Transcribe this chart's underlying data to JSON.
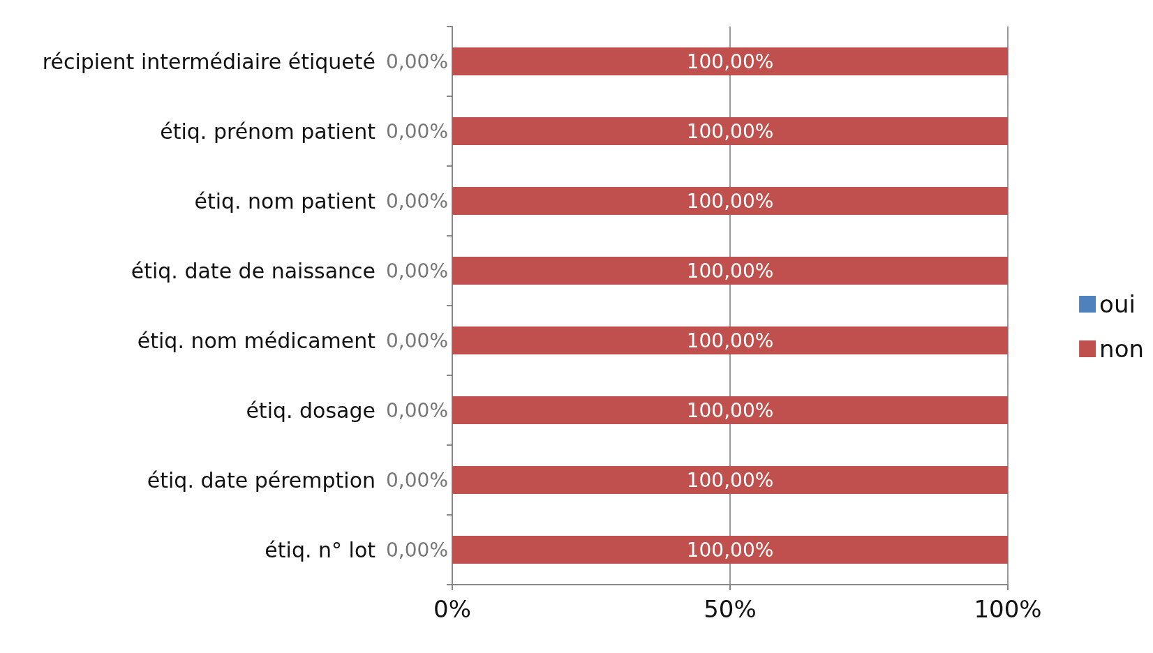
{
  "chart_data": {
    "type": "bar",
    "orientation": "horizontal",
    "stacked": true,
    "categories": [
      "récipient intermédiaire étiqueté",
      "étiq. prénom patient",
      "étiq. nom patient",
      "étiq. date de naissance",
      "étiq. nom médicament",
      "étiq. dosage",
      "étiq. date péremption",
      "étiq. n° lot"
    ],
    "series": [
      {
        "name": "oui",
        "color": "#4f81bd",
        "values": [
          0,
          0,
          0,
          0,
          0,
          0,
          0,
          0
        ],
        "value_labels": [
          "0,00%",
          "0,00%",
          "0,00%",
          "0,00%",
          "0,00%",
          "0,00%",
          "0,00%",
          "0,00%"
        ]
      },
      {
        "name": "non",
        "color": "#c0504d",
        "values": [
          100,
          100,
          100,
          100,
          100,
          100,
          100,
          100
        ],
        "value_labels": [
          "100,00%",
          "100,00%",
          "100,00%",
          "100,00%",
          "100,00%",
          "100,00%",
          "100,00%",
          "100,00%"
        ]
      }
    ],
    "xlim": [
      0,
      100
    ],
    "xticks": [
      {
        "value": 0,
        "label": "0%"
      },
      {
        "value": 50,
        "label": "50%"
      },
      {
        "value": 100,
        "label": "100%"
      }
    ],
    "grid": "x",
    "legend": "right"
  }
}
